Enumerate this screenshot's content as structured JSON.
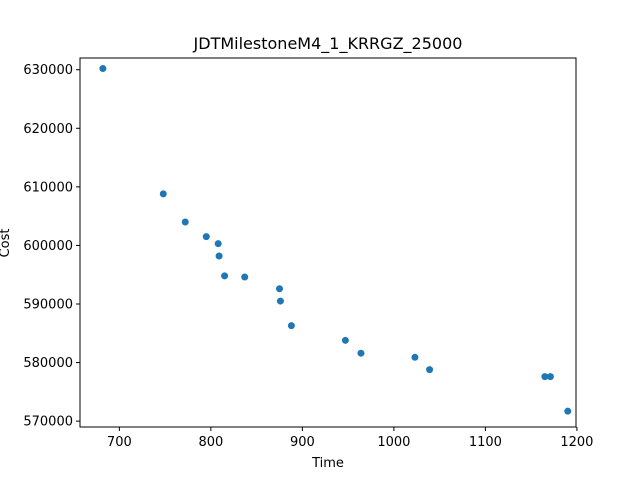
{
  "chart_data": {
    "type": "scatter",
    "title": "JDTMilestoneM4_1_KRRGZ_25000",
    "xlabel": "Time",
    "ylabel": "Cost",
    "xlim": [
      657,
      1199
    ],
    "ylim": [
      569000,
      632000
    ],
    "xticks": [
      700,
      800,
      900,
      1000,
      1100,
      1200
    ],
    "yticks": [
      570000,
      580000,
      590000,
      600000,
      610000,
      620000,
      630000
    ],
    "grid": false,
    "marker_color": "#1f77b4",
    "points": [
      {
        "x": 682,
        "y": 630200
      },
      {
        "x": 748,
        "y": 608800
      },
      {
        "x": 772,
        "y": 604000
      },
      {
        "x": 795,
        "y": 601500
      },
      {
        "x": 808,
        "y": 600300
      },
      {
        "x": 809,
        "y": 598200
      },
      {
        "x": 815,
        "y": 594800
      },
      {
        "x": 837,
        "y": 594600
      },
      {
        "x": 875,
        "y": 592600
      },
      {
        "x": 876,
        "y": 590500
      },
      {
        "x": 888,
        "y": 586300
      },
      {
        "x": 947,
        "y": 583800
      },
      {
        "x": 964,
        "y": 581600
      },
      {
        "x": 1023,
        "y": 580900
      },
      {
        "x": 1039,
        "y": 578800
      },
      {
        "x": 1165,
        "y": 577600
      },
      {
        "x": 1171,
        "y": 577600
      },
      {
        "x": 1190,
        "y": 571700
      }
    ]
  }
}
